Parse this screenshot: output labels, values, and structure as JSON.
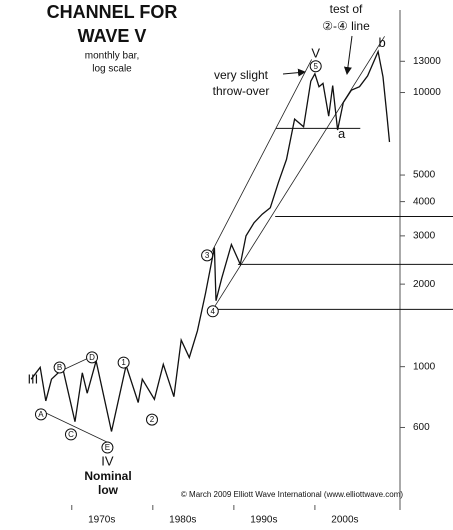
{
  "chart_data": {
    "type": "line",
    "title": [
      "CHANNEL FOR",
      "WAVE V"
    ],
    "subtitle": [
      "monthly bar,",
      "log scale"
    ],
    "credit": "© March 2009 Elliott Wave International (www.elliottwave.com)",
    "log_scale": true,
    "xlim": [
      1964.6,
      2010.5
    ],
    "ylim": [
      300,
      20000
    ],
    "yticks": [
      13000,
      10000,
      5000,
      4000,
      3000,
      2000,
      1000,
      600
    ],
    "xticks": [
      {
        "value": 1970,
        "label": "1970s"
      },
      {
        "value": 1980,
        "label": "1980s"
      },
      {
        "value": 1990,
        "label": "1990s"
      },
      {
        "value": 2000,
        "label": "2000s"
      }
    ],
    "series": [
      {
        "color": "#111111",
        "x": [
          1965,
          1966.1,
          1966.8,
          1967.5,
          1968.9,
          1970.4,
          1971.3,
          1971.9,
          1973.0,
          1974.9,
          1976.7,
          1978.2,
          1978.7,
          1980.2,
          1981.3,
          1982.6,
          1983.5,
          1984.5,
          1985.5,
          1986.5,
          1987.6,
          1987.8,
          1988.5,
          1989.7,
          1990.8,
          1991.5,
          1992.5,
          1993.5,
          1994.5,
          1995.5,
          1996.5,
          1997.5,
          1998.6,
          1999.5,
          2000.0,
          2000.5,
          2001.0,
          2001.7,
          2002.2,
          2002.8,
          2003.5,
          2004.5,
          2005.5,
          2006.5,
          2007.8,
          2008.4,
          2008.9,
          2009.2
        ],
        "values": [
          900,
          995,
          750,
          900,
          985,
          630,
          950,
          800,
          1050,
          580,
          1010,
          740,
          900,
          760,
          1020,
          777,
          1250,
          1080,
          1350,
          1850,
          2720,
          1740,
          2100,
          2790,
          2360,
          3000,
          3350,
          3600,
          3800,
          4700,
          5700,
          8000,
          7500,
          11000,
          11700,
          10500,
          10800,
          8200,
          10600,
          7300,
          9200,
          10200,
          10500,
          11500,
          14100,
          11400,
          8200,
          6600
        ]
      }
    ],
    "channel_lines": [
      {
        "x": [
          1987.2,
          1999.6
        ],
        "y": [
          2600,
          13200
        ]
      },
      {
        "x": [
          1987.65,
          2008.6
        ],
        "y": [
          1660,
          16030
        ]
      },
      {
        "x": [
          1965.8,
          1974.4
        ],
        "y": [
          700,
          530
        ]
      },
      {
        "x": [
          1968.5,
          1972.5
        ],
        "y": [
          960,
          1090
        ]
      }
    ],
    "levels": [
      {
        "value": 7400,
        "x": [
          1995.2,
          2005.6
        ]
      },
      {
        "value": 3530,
        "x": [
          1995.1
        ]
      },
      {
        "value": 2361,
        "x": [
          1990.5
        ]
      },
      {
        "value": 1618,
        "x": [
          1987.65
        ]
      }
    ],
    "wave_labels": [
      {
        "text": "III",
        "x": 1965.2,
        "y": 898,
        "circled": false
      },
      {
        "text": "A",
        "x": 1966.2,
        "y": 670,
        "circled": true
      },
      {
        "text": "B",
        "x": 1968.5,
        "y": 993,
        "circled": true
      },
      {
        "text": "C",
        "x": 1969.9,
        "y": 566,
        "circled": true
      },
      {
        "text": "D",
        "x": 1972.5,
        "y": 1081,
        "circled": true
      },
      {
        "text": "E",
        "x": 1974.4,
        "y": 507,
        "circled": true
      },
      {
        "text": "IV",
        "x": 1974.4,
        "y": 451,
        "circled": false
      },
      {
        "text": "1",
        "x": 1976.4,
        "y": 1035,
        "circled": true
      },
      {
        "text": "2",
        "x": 1979.9,
        "y": 641,
        "circled": true
      },
      {
        "text": "3",
        "x": 1986.7,
        "y": 2547,
        "circled": true
      },
      {
        "text": "4",
        "x": 1987.4,
        "y": 1592,
        "circled": true
      },
      {
        "text": "5",
        "x": 2000.1,
        "y": 12470,
        "circled": true
      },
      {
        "text": "V",
        "x": 2000.1,
        "y": 13900,
        "circled": false
      },
      {
        "text": "a",
        "x": 2003.3,
        "y": 7047,
        "circled": false
      },
      {
        "text": "b",
        "x": 2008.3,
        "y": 15140,
        "circled": false
      }
    ],
    "notes": {
      "throw_over": [
        "very slight",
        "throw-over"
      ],
      "test": [
        "test of",
        "②-④ line"
      ],
      "nominal_low": [
        "Nominal",
        "low"
      ]
    }
  }
}
